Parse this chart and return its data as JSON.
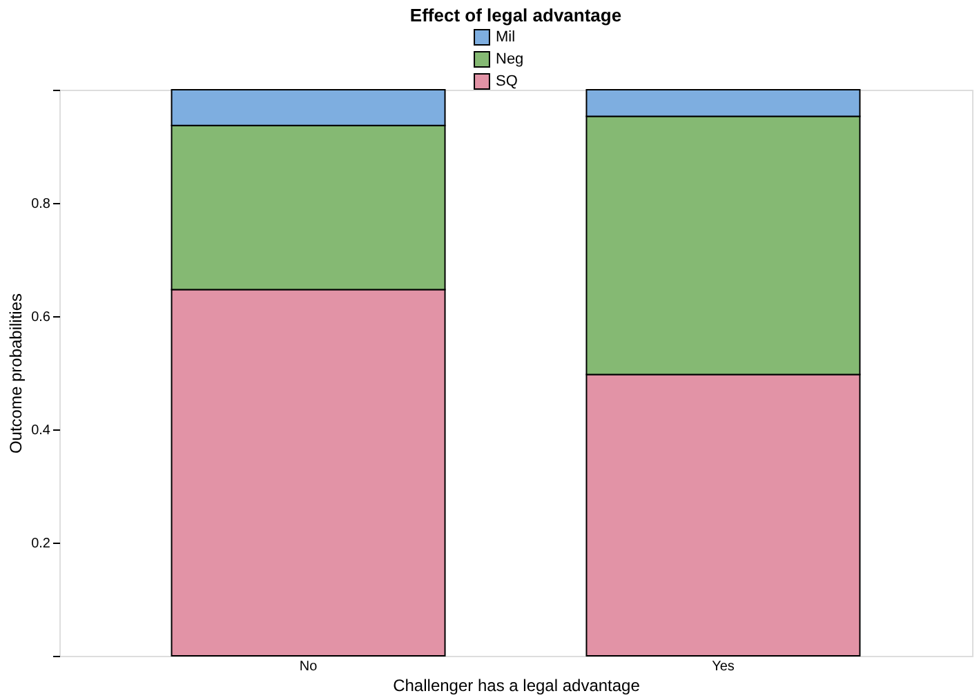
{
  "chart_data": {
    "type": "bar",
    "title": "Effect of legal advantage",
    "xlabel": "Challenger has a legal advantage",
    "ylabel": "Outcome probabilities",
    "categories": [
      "No",
      "Yes"
    ],
    "stacked": true,
    "legend": "top",
    "series": [
      {
        "name": "SQ",
        "color": "#e293a6",
        "values": [
          0.647,
          0.497
        ]
      },
      {
        "name": "Neg",
        "color": "#85b973",
        "values": [
          0.29,
          0.456
        ]
      },
      {
        "name": "Mil",
        "color": "#7eaee0",
        "values": [
          0.063,
          0.047
        ]
      }
    ],
    "ylim": [
      0,
      1
    ],
    "yticks": [
      {
        "value": 0,
        "label": null
      },
      0.2,
      0.4,
      0.6,
      0.8,
      {
        "value": 1,
        "label": null
      }
    ],
    "grid": false
  }
}
